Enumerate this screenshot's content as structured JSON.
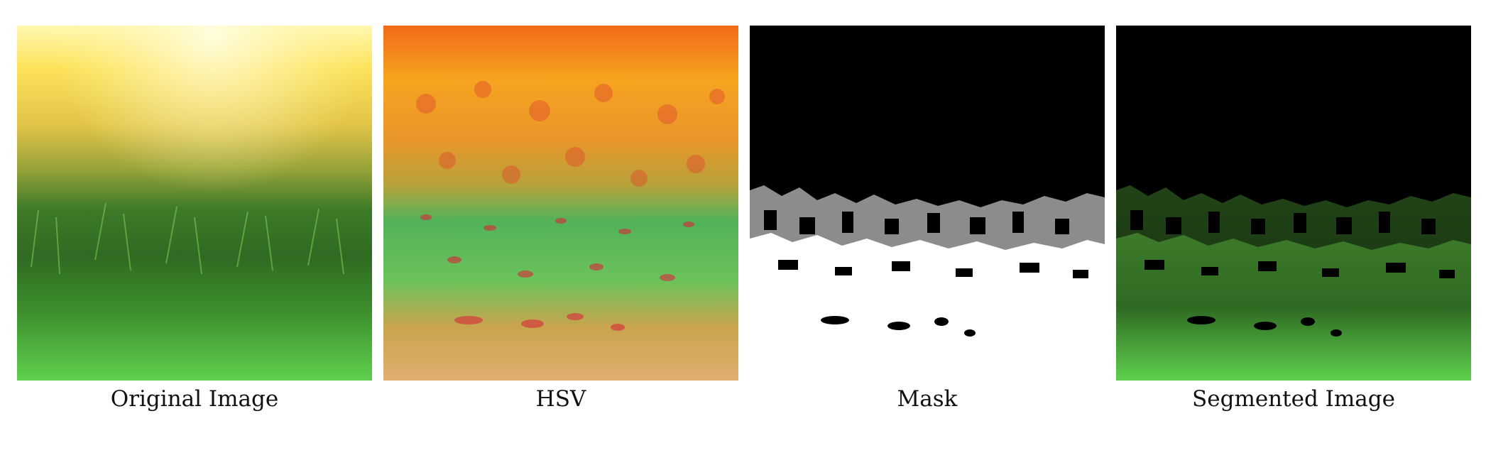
{
  "panels": [
    {
      "caption": "Original Image",
      "image": "sunlit-grass-closeup"
    },
    {
      "caption": "HSV",
      "image": "hsv-converted-grass"
    },
    {
      "caption": "Mask",
      "image": "binary-grass-mask"
    },
    {
      "caption": "Segmented Image",
      "image": "segmented-grass"
    }
  ],
  "colors": {
    "background": "#ffffff",
    "grass_green": "#3a8f2a",
    "sun_yellow": "#fff27a",
    "hsv_orange": "#f07a1e",
    "hsv_red": "#d8283a",
    "mask_black": "#000000",
    "mask_white": "#ffffff"
  }
}
